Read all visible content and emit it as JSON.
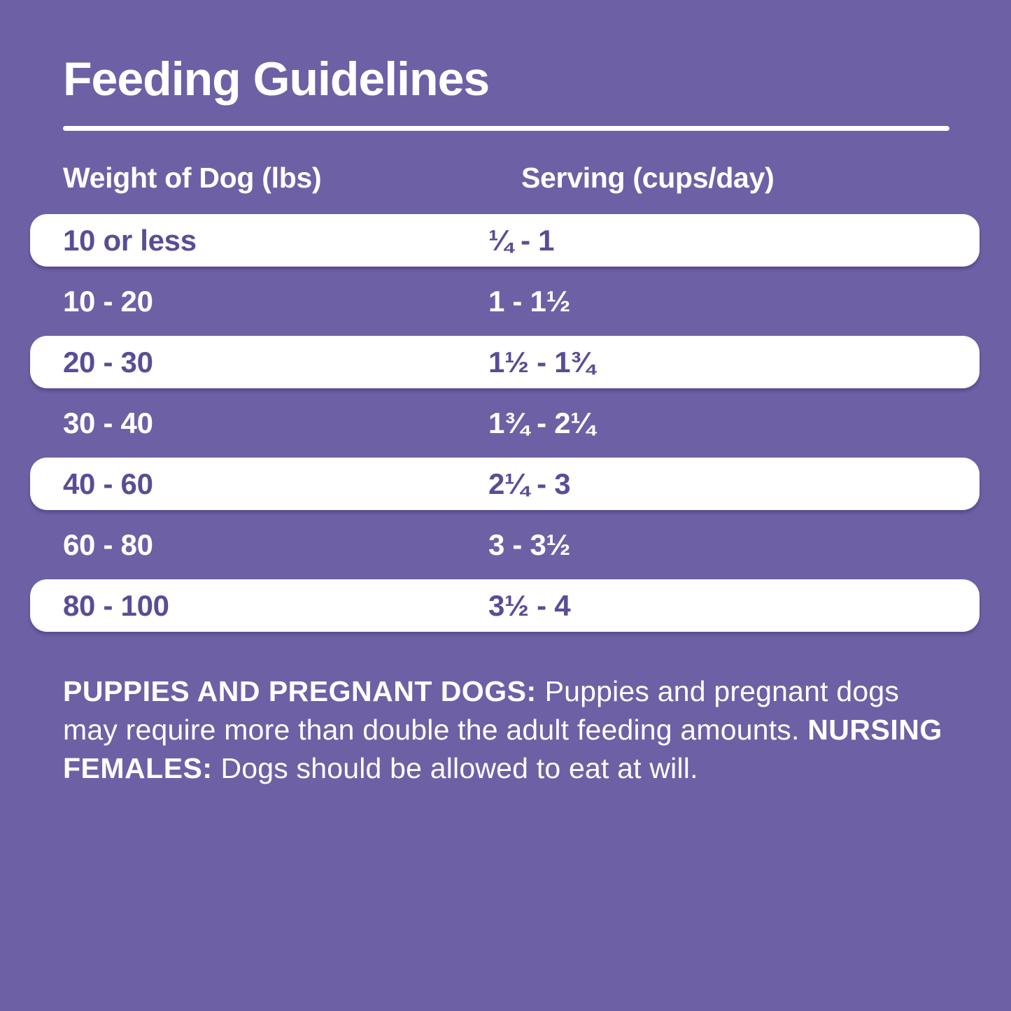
{
  "page": {
    "title": "Feeding Guidelines"
  },
  "table": {
    "headers": {
      "weight": "Weight of Dog (lbs)",
      "serving": "Serving (cups/day)"
    },
    "rows": [
      {
        "weight": "10 or less",
        "serving": "¼ - 1",
        "highlighted": true
      },
      {
        "weight": "10 - 20",
        "serving": "1 - 1½",
        "highlighted": false
      },
      {
        "weight": "20 - 30",
        "serving": "1½ - 1¾",
        "highlighted": true
      },
      {
        "weight": "30 - 40",
        "serving": "1¾ - 2¼",
        "highlighted": false
      },
      {
        "weight": "40 - 60",
        "serving": "2¼ - 3",
        "highlighted": true
      },
      {
        "weight": "60 - 80",
        "serving": "3 - 3½",
        "highlighted": false
      },
      {
        "weight": "80 - 100",
        "serving": "3½ - 4",
        "highlighted": true
      }
    ]
  },
  "footer": {
    "segments": [
      {
        "text": "PUPPIES AND PREGNANT DOGS: ",
        "bold": true
      },
      {
        "text": "Puppies and pregnant dogs may require more than double the adult feeding amounts. ",
        "bold": false
      },
      {
        "text": "NURSING FEMALES: ",
        "bold": true
      },
      {
        "text": "Dogs should be allowed to eat at will.",
        "bold": false
      }
    ]
  },
  "colors": {
    "background": "#6e60a5",
    "row_text": "#5a4d96",
    "row_background": "#ffffff",
    "heading_text": "#ffffff"
  }
}
